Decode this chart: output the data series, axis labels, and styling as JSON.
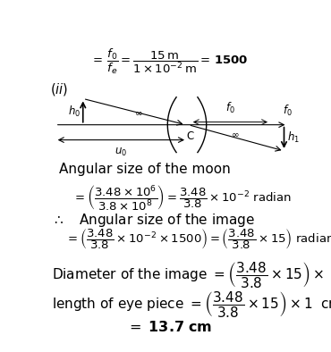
{
  "bg_color": "#ffffff",
  "fontsize": 9.5,
  "fig_w": 3.7,
  "fig_h": 3.94,
  "dpi": 100
}
